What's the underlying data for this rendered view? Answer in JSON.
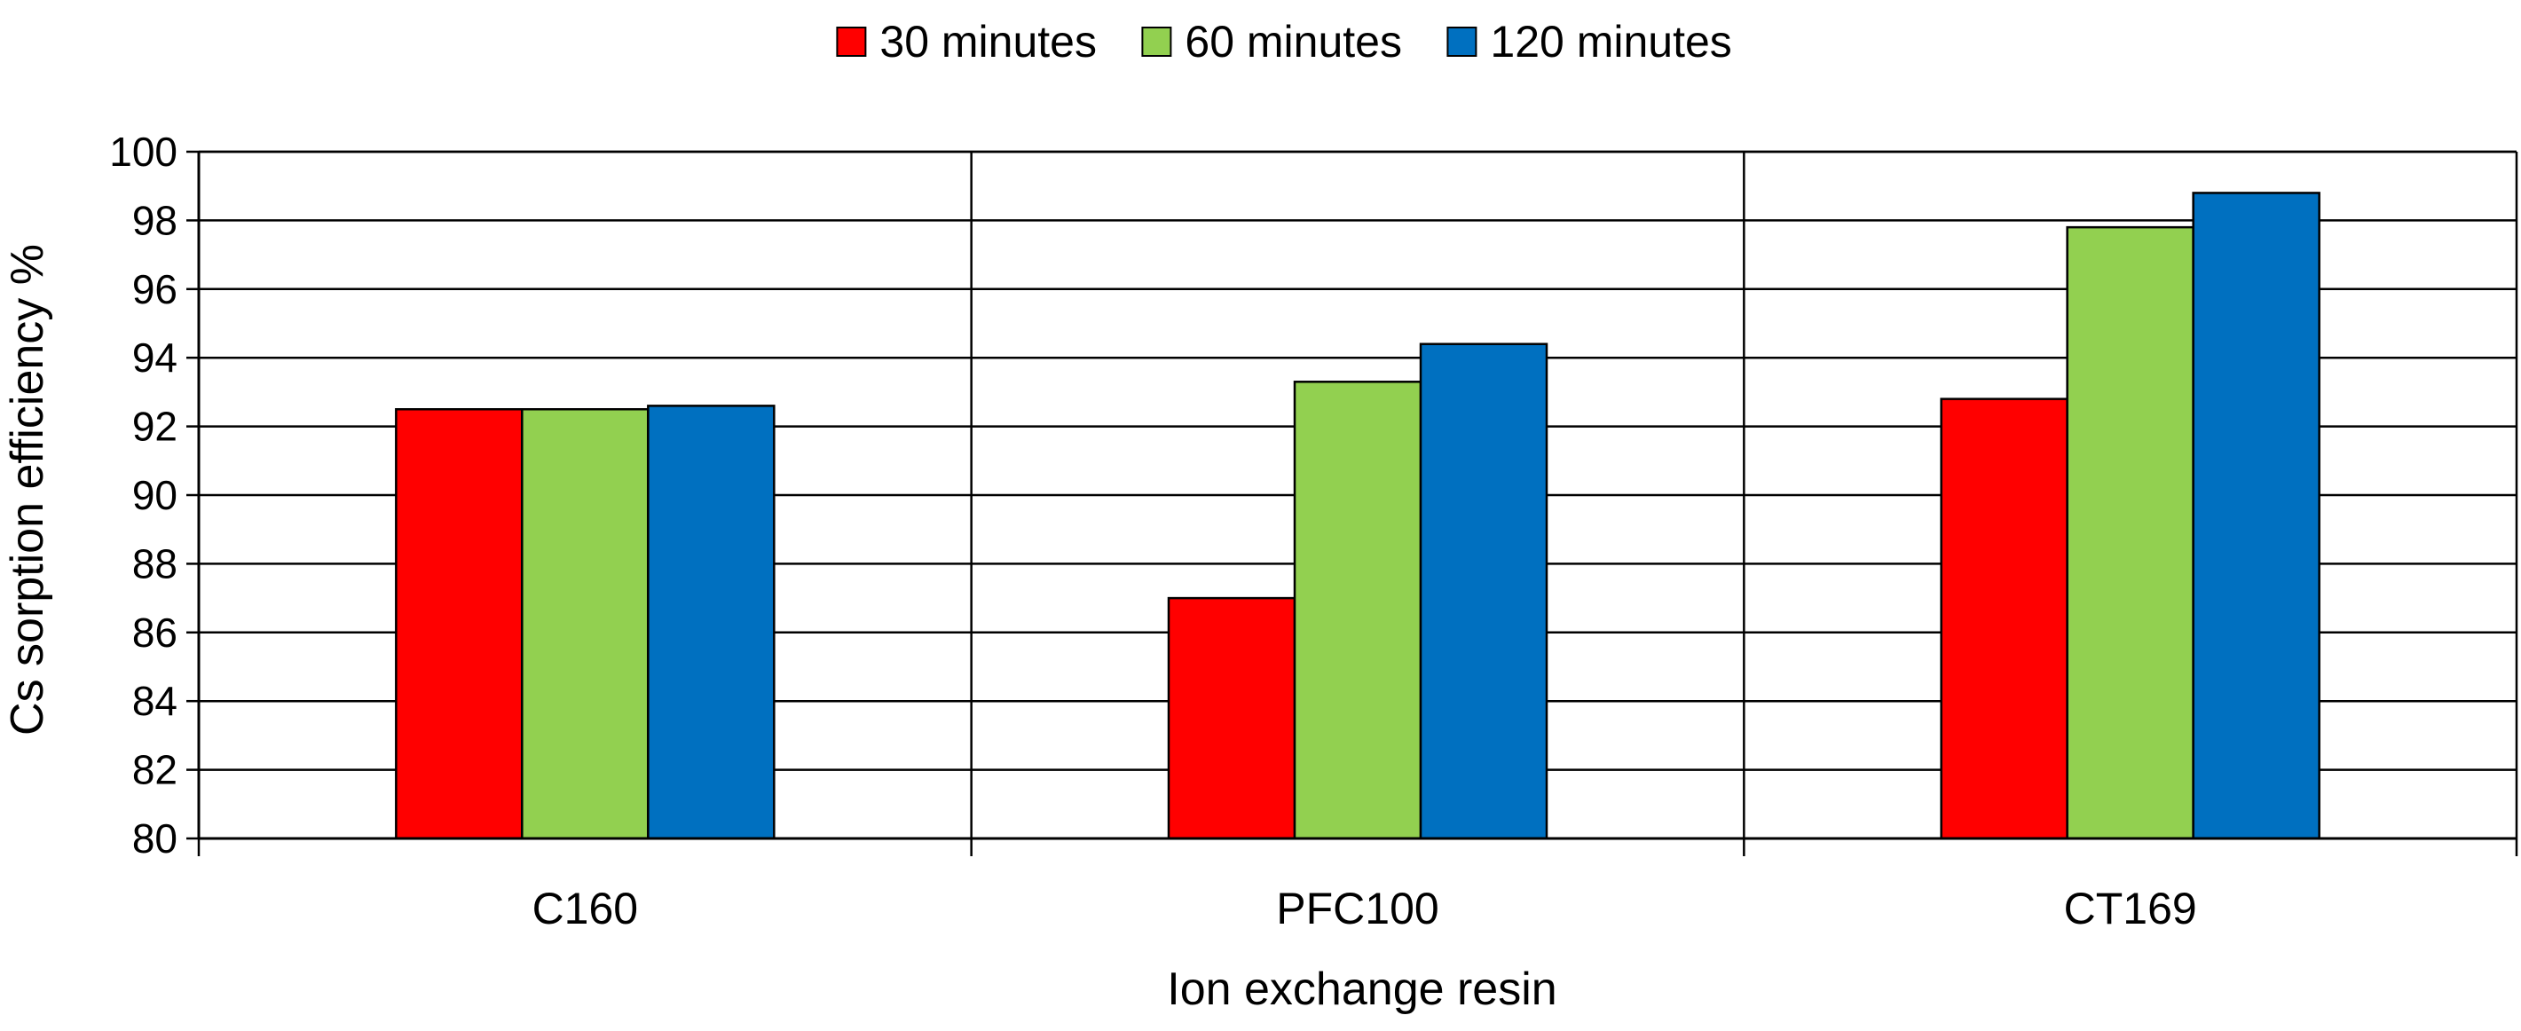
{
  "chart_data": {
    "type": "bar",
    "title": "",
    "xlabel": "Ion exchange resin",
    "ylabel": "Cs sorption efficiency %",
    "categories": [
      "C160",
      "PFC100",
      "CT169"
    ],
    "series": [
      {
        "name": "30 minutes",
        "color": "#ff0000",
        "values": [
          92.5,
          87.0,
          92.8
        ]
      },
      {
        "name": "60 minutes",
        "color": "#92d050",
        "values": [
          92.5,
          93.3,
          97.8
        ]
      },
      {
        "name": "120 minutes",
        "color": "#0070c0",
        "values": [
          92.6,
          94.4,
          98.8
        ]
      }
    ],
    "ylim": [
      80,
      100
    ],
    "yticks": [
      80,
      82,
      84,
      86,
      88,
      90,
      92,
      94,
      96,
      98,
      100
    ],
    "ytick_labels": [
      "80",
      "82",
      "84",
      "86",
      "88",
      "90",
      "92",
      "94",
      "96",
      "98",
      "100"
    ],
    "grid": true,
    "legend_position": "top-center"
  }
}
